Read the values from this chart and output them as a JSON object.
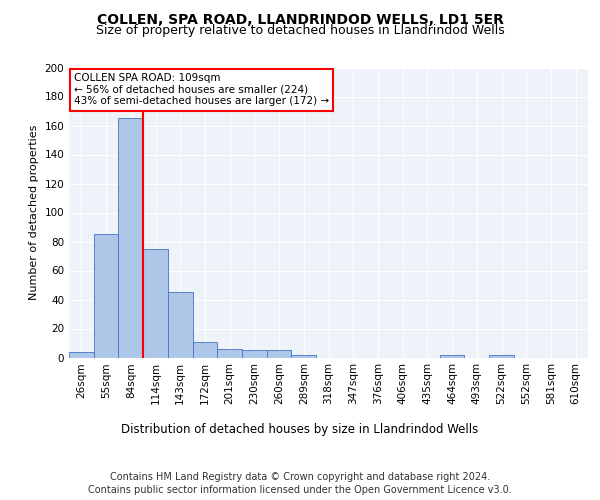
{
  "title1": "COLLEN, SPA ROAD, LLANDRINDOD WELLS, LD1 5ER",
  "title2": "Size of property relative to detached houses in Llandrindod Wells",
  "xlabel": "Distribution of detached houses by size in Llandrindod Wells",
  "ylabel": "Number of detached properties",
  "bin_labels": [
    "26sqm",
    "55sqm",
    "84sqm",
    "114sqm",
    "143sqm",
    "172sqm",
    "201sqm",
    "230sqm",
    "260sqm",
    "289sqm",
    "318sqm",
    "347sqm",
    "376sqm",
    "406sqm",
    "435sqm",
    "464sqm",
    "493sqm",
    "522sqm",
    "552sqm",
    "581sqm",
    "610sqm"
  ],
  "bar_values": [
    4,
    85,
    165,
    75,
    45,
    11,
    6,
    5,
    5,
    2,
    0,
    0,
    0,
    0,
    0,
    2,
    0,
    2,
    0,
    0,
    0
  ],
  "bar_color": "#aec6e8",
  "bar_edge_color": "#4472c4",
  "vline_color": "red",
  "vline_x_index": 2.5,
  "annotation_text": "COLLEN SPA ROAD: 109sqm\n← 56% of detached houses are smaller (224)\n43% of semi-detached houses are larger (172) →",
  "annotation_box_color": "white",
  "annotation_box_edge": "red",
  "ylim": [
    0,
    200
  ],
  "yticks": [
    0,
    20,
    40,
    60,
    80,
    100,
    120,
    140,
    160,
    180,
    200
  ],
  "footer1": "Contains HM Land Registry data © Crown copyright and database right 2024.",
  "footer2": "Contains public sector information licensed under the Open Government Licence v3.0.",
  "bg_color": "#eef2f9",
  "grid_color": "#ffffff",
  "title1_fontsize": 10,
  "title2_fontsize": 9,
  "xlabel_fontsize": 8.5,
  "ylabel_fontsize": 8,
  "tick_fontsize": 7.5,
  "footer_fontsize": 7,
  "annotation_fontsize": 7.5
}
